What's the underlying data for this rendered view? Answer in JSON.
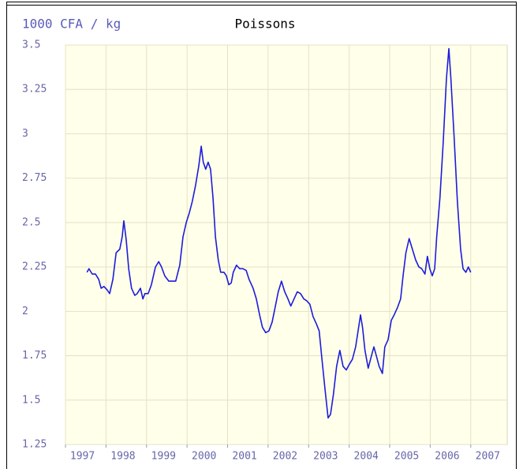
{
  "chart_data": {
    "type": "line",
    "title": "Poissons",
    "y_label": "1000 CFA / kg",
    "xlim": [
      1997,
      2007.9
    ],
    "xticks": [
      1997,
      1998,
      1999,
      2000,
      2001,
      2002,
      2003,
      2004,
      2005,
      2006,
      2007
    ],
    "ylim": [
      1.25,
      3.5
    ],
    "yticks": [
      3.5,
      3.25,
      3,
      2.75,
      2.5,
      2.25,
      2,
      1.75,
      1.5,
      1.25
    ],
    "grid": true,
    "series": [
      {
        "color": "#1c1cdc",
        "x": [
          1997.53,
          1997.58,
          1997.66,
          1997.74,
          1997.82,
          1997.88,
          1997.95,
          1998.03,
          1998.09,
          1998.17,
          1998.25,
          1998.34,
          1998.4,
          1998.44,
          1998.5,
          1998.56,
          1998.63,
          1998.71,
          1998.77,
          1998.85,
          1998.91,
          1998.96,
          1999.04,
          1999.12,
          1999.22,
          1999.3,
          1999.37,
          1999.45,
          1999.55,
          1999.63,
          1999.72,
          1999.82,
          1999.9,
          1999.98,
          2000.05,
          2000.13,
          2000.21,
          2000.29,
          2000.35,
          2000.4,
          2000.46,
          2000.52,
          2000.58,
          2000.64,
          2000.7,
          2000.77,
          2000.83,
          2000.91,
          2000.97,
          2001.03,
          2001.09,
          2001.14,
          2001.22,
          2001.3,
          2001.38,
          2001.46,
          2001.53,
          2001.63,
          2001.71,
          2001.79,
          2001.86,
          2001.94,
          2002.02,
          2002.1,
          2002.18,
          2002.25,
          2002.33,
          2002.41,
          2002.49,
          2002.56,
          2002.64,
          2002.72,
          2002.8,
          2002.88,
          2002.95,
          2003.03,
          2003.11,
          2003.19,
          2003.26,
          2003.32,
          2003.4,
          2003.48,
          2003.54,
          2003.61,
          2003.69,
          2003.77,
          2003.85,
          2003.93,
          2004.0,
          2004.08,
          2004.16,
          2004.22,
          2004.28,
          2004.33,
          2004.39,
          2004.47,
          2004.55,
          2004.61,
          2004.67,
          2004.74,
          2004.82,
          2004.88,
          2004.96,
          2005.04,
          2005.11,
          2005.19,
          2005.27,
          2005.33,
          2005.4,
          2005.48,
          2005.56,
          2005.64,
          2005.72,
          2005.79,
          2005.87,
          2005.93,
          2005.99,
          2006.05,
          2006.11,
          2006.16,
          2006.24,
          2006.32,
          2006.4,
          2006.46,
          2006.51,
          2006.59,
          2006.67,
          2006.75,
          2006.81,
          2006.88,
          2006.94,
          2007.0
        ],
        "values": [
          2.22,
          2.24,
          2.21,
          2.21,
          2.18,
          2.13,
          2.14,
          2.12,
          2.1,
          2.18,
          2.33,
          2.35,
          2.42,
          2.51,
          2.4,
          2.24,
          2.13,
          2.09,
          2.1,
          2.13,
          2.07,
          2.1,
          2.1,
          2.15,
          2.25,
          2.28,
          2.25,
          2.2,
          2.17,
          2.17,
          2.17,
          2.26,
          2.42,
          2.5,
          2.55,
          2.62,
          2.71,
          2.82,
          2.93,
          2.84,
          2.8,
          2.84,
          2.8,
          2.64,
          2.42,
          2.29,
          2.22,
          2.22,
          2.2,
          2.15,
          2.16,
          2.22,
          2.26,
          2.24,
          2.24,
          2.23,
          2.18,
          2.13,
          2.07,
          1.98,
          1.91,
          1.88,
          1.89,
          1.94,
          2.03,
          2.11,
          2.17,
          2.11,
          2.07,
          2.03,
          2.07,
          2.11,
          2.1,
          2.07,
          2.06,
          2.04,
          1.97,
          1.93,
          1.89,
          1.75,
          1.57,
          1.4,
          1.42,
          1.53,
          1.69,
          1.78,
          1.69,
          1.67,
          1.7,
          1.73,
          1.8,
          1.89,
          1.98,
          1.91,
          1.78,
          1.68,
          1.75,
          1.8,
          1.75,
          1.69,
          1.65,
          1.8,
          1.84,
          1.95,
          1.98,
          2.02,
          2.07,
          2.2,
          2.33,
          2.41,
          2.35,
          2.29,
          2.25,
          2.24,
          2.21,
          2.31,
          2.24,
          2.2,
          2.24,
          2.42,
          2.64,
          2.95,
          3.31,
          3.48,
          3.31,
          2.98,
          2.62,
          2.35,
          2.24,
          2.22,
          2.25,
          2.22
        ]
      }
    ]
  }
}
